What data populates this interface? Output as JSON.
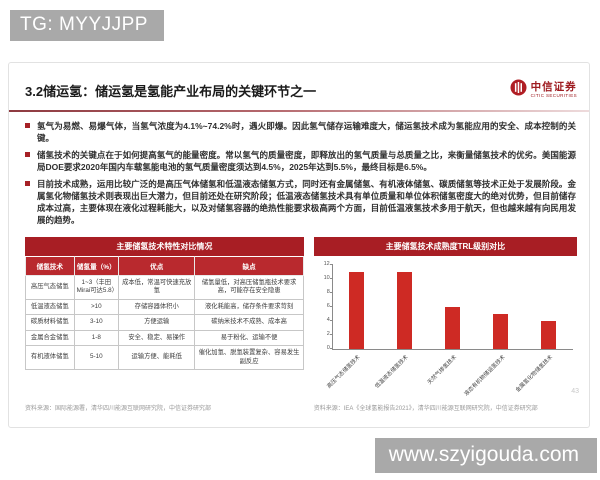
{
  "badges": {
    "tg": "TG: MYYJJPP",
    "watermark": "www.szyigouda.com"
  },
  "header": {
    "title": "3.2储运氢：储运氢是氢能产业布局的关键环节之一",
    "logo_cn": "中信证券",
    "logo_en": "CITIC SECURITIES"
  },
  "bullets": [
    "氢气为易燃、易爆气体，当氢气浓度为4.1%~74.2%时，遇火即爆。因此氢气储存运输难度大，储运氢技术成为氢能应用的安全、成本控制的关键。",
    "储氢技术的关键点在于如何提高氢气的能量密度。常以氢气的质量密度，即释放出的氢气质量与总质量之比，来衡量储氢技术的优劣。美国能源局DOE要求2020年国内车载氢能电池的氢气质量密度须达到4.5%，2025年达到5.5%，最终目标是6.5%。",
    "目前技术成熟，运用比较广泛的是高压气体储氢和低温液态储氢方式，同时还有金属储氢、有机液体储氢、碳质储氢等技术正处于发展阶段。金属氢化物储氢技术则表现出巨大潜力，但目前还处在研究阶段；低温液态储氢技术具有单位质量和单位体积储氢密度大的绝对优势，但目前储存成本过高，主要体现在液化过程耗能大，以及对储氢容器的绝热性能要求极高两个方面，目前低温液氢技术多用于航天，但也越来越有向民用发展的趋势。"
  ],
  "table": {
    "title": "主要储氢技术特性对比情况",
    "columns": [
      "储氢技术",
      "储氢量（%）",
      "优点",
      "缺点"
    ],
    "rows": [
      [
        "高压气态储氢",
        "1~3（丰田Mirai可达5.8）",
        "成本低，常温可快速充放氢",
        "储氢量低，对高压储氢瓶技术要求高，可能存在安全隐患"
      ],
      [
        "低温液态储氢",
        ">10",
        "存储容器体积小",
        "液化耗能高，储存条件要求苛刻"
      ],
      [
        "碳质材料储氢",
        "3-10",
        "方便运输",
        "碳纳米技术不成熟、成本高"
      ],
      [
        "金属合金储氢",
        "1-8",
        "安全、稳定、易操作",
        "易于粉化、运输不便"
      ],
      [
        "有机液体储氢",
        "5-10",
        "运输方便、能耗低",
        "催化加氢、脱氢装置复杂、容易发生副反应"
      ]
    ],
    "source": "资料来源：国际能源署，清华四川能源互联网研究院，中信证券研究部"
  },
  "chart": {
    "title": "主要储氢技术成熟度TRL级别对比",
    "source": "资料来源：IEA《全球氢能报告2021》，清华四川能源互联网研究院，中信证券研究部"
  },
  "chart_data": {
    "type": "bar",
    "title": "主要储氢技术成熟度TRL级别对比",
    "categories": [
      "高压气态储氢技术",
      "低温液态储氢技术",
      "天然气掺氢技术",
      "液态有机物储运氢技术",
      "金属氢化物储氢技术"
    ],
    "values": [
      11,
      11,
      6,
      5,
      4
    ],
    "xlabel": "",
    "ylabel": "",
    "ylim": [
      0,
      12
    ],
    "yticks": [
      0,
      2,
      4,
      6,
      8,
      10,
      12
    ],
    "grid": false,
    "legend": "none",
    "bar_color": "#ce2a24"
  },
  "page_number": "43",
  "colors": {
    "accent_red": "#a81e24",
    "table_header_red": "#b9292e",
    "bar_red": "#ce2a24",
    "badge_gray": "#a9a9a9"
  }
}
